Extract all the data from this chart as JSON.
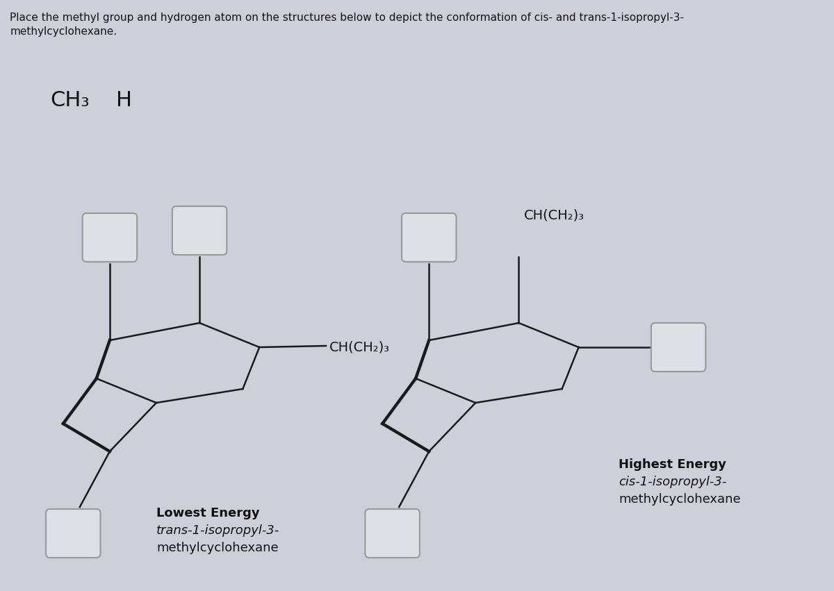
{
  "title_line1": "Place the methyl group and hydrogen atom on the structures below to depict the conformation of cis- and trans-1-isopropyl-3-",
  "title_line2": "methylcyclohexane.",
  "label_ch3": "CH₃",
  "label_h": "H",
  "left_chch2_label": "CH(CH₂)₃",
  "right_chch2_label": "CH(CH₂)₃",
  "left_caption_bold": "Lowest Energy",
  "left_caption_italic": "trans-1-isopropyl-3-",
  "left_caption_normal": "methylcyclohexane",
  "right_caption_bold": "Highest Energy",
  "right_caption_italic": "cis-1-isopropyl-3-",
  "right_caption_normal": "methylcyclohexane",
  "bg_color": "#cdd0d8",
  "line_color": "#1a1a1a",
  "box_facecolor": "#dde0e5",
  "box_edgecolor": "#999999",
  "text_color": "#111111"
}
